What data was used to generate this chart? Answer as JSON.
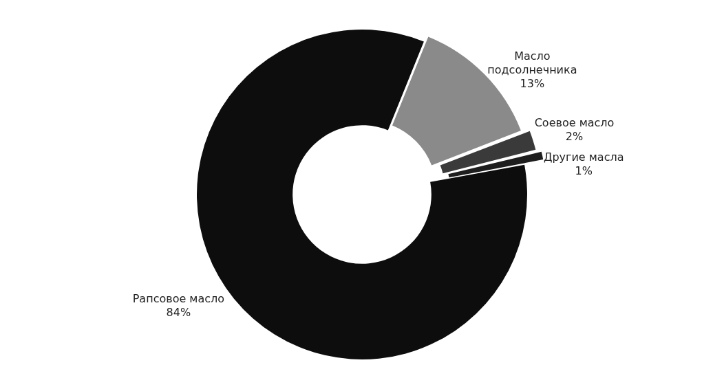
{
  "chart_data": {
    "type": "donut",
    "categories": [
      "Масло подсолнечника",
      "Соевое масло",
      "Другие масла",
      "Рапсовое масло"
    ],
    "values": [
      13,
      2,
      1,
      84
    ],
    "colors": [
      "#8a8a8a",
      "#3a3a3a",
      "#1e1e1e",
      "#0d0d0d"
    ],
    "value_labels": [
      "13%",
      "2%",
      "1%",
      "84%"
    ],
    "legend": false
  }
}
